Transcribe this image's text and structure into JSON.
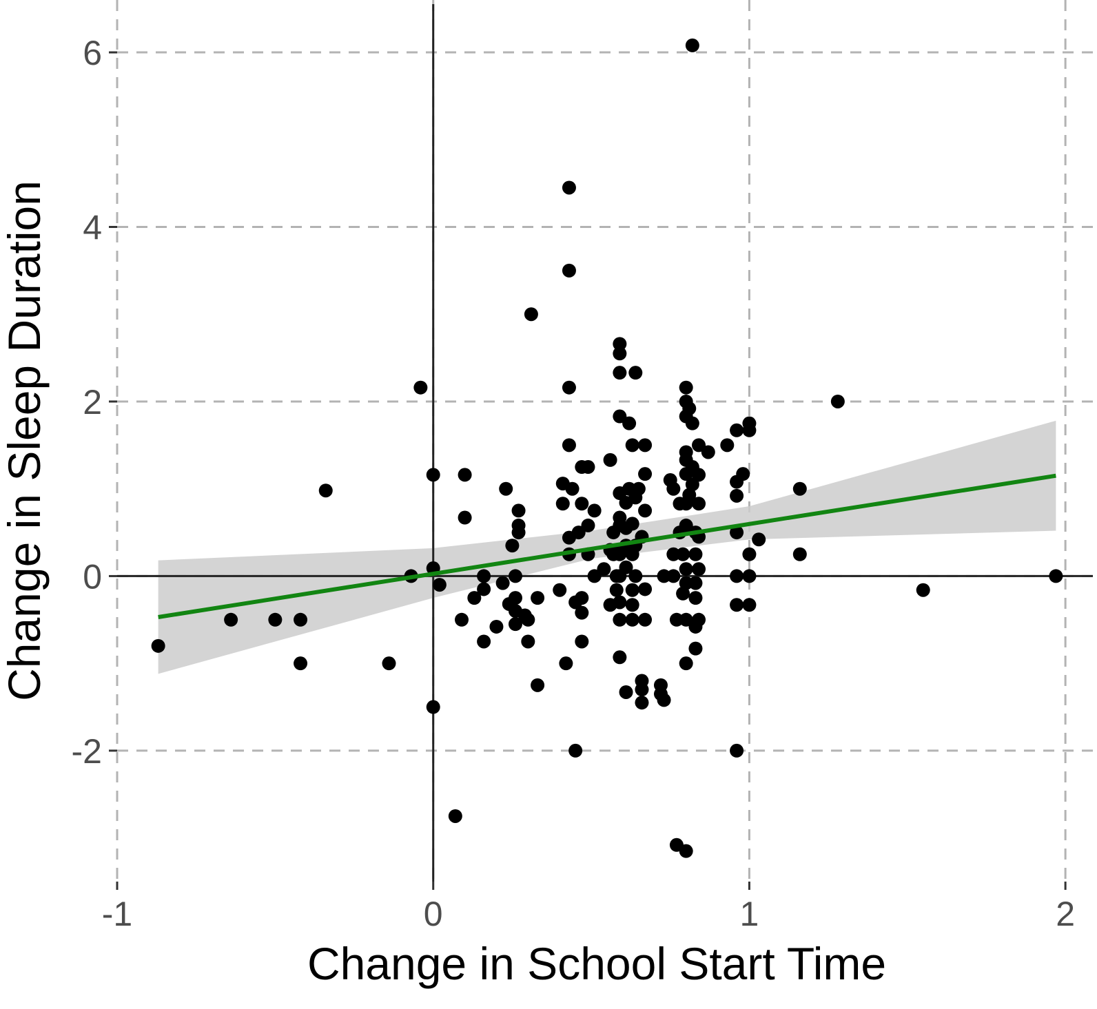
{
  "chart_data": {
    "type": "scatter",
    "xlabel": "Change in School Start Time",
    "ylabel": "Change in Sleep Duration",
    "xlim": [
      -1.0,
      2.1
    ],
    "ylim": [
      -3.5,
      6.6
    ],
    "xticks": [
      -1,
      0,
      1,
      2
    ],
    "yticks": [
      -2,
      0,
      2,
      4,
      6
    ],
    "xtick_labels": [
      "-1",
      "0",
      "1",
      "2"
    ],
    "ytick_labels": [
      "-2",
      "0",
      "2",
      "4",
      "6"
    ],
    "grid": true,
    "reference_lines": {
      "x": 0,
      "y": 0
    },
    "colors": {
      "points": "#000000",
      "fit_line": "#128512",
      "ribbon": "#cccccc",
      "grid": "#b3b3b3",
      "ref_line": "#222222"
    },
    "fit": {
      "x": [
        -0.87,
        1.97
      ],
      "y": [
        -0.47,
        1.15
      ]
    },
    "ribbon": {
      "x": [
        -0.87,
        0.0,
        0.5,
        1.0,
        1.97
      ],
      "lower": [
        -1.12,
        -0.25,
        0.2,
        0.42,
        0.52
      ],
      "upper": [
        0.18,
        0.32,
        0.52,
        0.8,
        1.78
      ]
    },
    "points": [
      [
        -0.87,
        -0.8
      ],
      [
        -0.64,
        -0.5
      ],
      [
        -0.5,
        -0.5
      ],
      [
        -0.42,
        -0.5
      ],
      [
        -0.42,
        -1.0
      ],
      [
        -0.34,
        0.98
      ],
      [
        -0.14,
        -1.0
      ],
      [
        -0.07,
        0.0
      ],
      [
        -0.04,
        2.16
      ],
      [
        0.0,
        1.16
      ],
      [
        0.0,
        0.09
      ],
      [
        0.0,
        -1.5
      ],
      [
        0.02,
        -0.1
      ],
      [
        0.07,
        -2.75
      ],
      [
        0.09,
        -0.5
      ],
      [
        0.1,
        0.67
      ],
      [
        0.1,
        1.16
      ],
      [
        0.13,
        -0.25
      ],
      [
        0.16,
        -0.75
      ],
      [
        0.16,
        0.0
      ],
      [
        0.16,
        -0.15
      ],
      [
        0.2,
        -0.58
      ],
      [
        0.22,
        -0.08
      ],
      [
        0.23,
        1.0
      ],
      [
        0.24,
        -0.32
      ],
      [
        0.25,
        0.35
      ],
      [
        0.26,
        0.0
      ],
      [
        0.26,
        -0.25
      ],
      [
        0.26,
        -0.4
      ],
      [
        0.26,
        -0.55
      ],
      [
        0.27,
        0.5
      ],
      [
        0.27,
        0.58
      ],
      [
        0.27,
        0.75
      ],
      [
        0.29,
        -0.45
      ],
      [
        0.3,
        -0.75
      ],
      [
        0.3,
        -0.5
      ],
      [
        0.31,
        3.0
      ],
      [
        0.33,
        -1.25
      ],
      [
        0.33,
        -0.25
      ],
      [
        0.4,
        -0.16
      ],
      [
        0.41,
        1.06
      ],
      [
        0.41,
        0.83
      ],
      [
        0.42,
        -1.0
      ],
      [
        0.43,
        0.25
      ],
      [
        0.43,
        0.44
      ],
      [
        0.43,
        1.5
      ],
      [
        0.43,
        3.5
      ],
      [
        0.43,
        4.45
      ],
      [
        0.43,
        2.16
      ],
      [
        0.44,
        1.0
      ],
      [
        0.45,
        -0.3
      ],
      [
        0.45,
        -2.0
      ],
      [
        0.46,
        0.5
      ],
      [
        0.47,
        0.83
      ],
      [
        0.47,
        1.25
      ],
      [
        0.47,
        -0.25
      ],
      [
        0.47,
        -0.42
      ],
      [
        0.47,
        -0.75
      ],
      [
        0.49,
        0.58
      ],
      [
        0.49,
        0.25
      ],
      [
        0.49,
        1.25
      ],
      [
        0.51,
        0.75
      ],
      [
        0.51,
        0.0
      ],
      [
        0.54,
        0.08
      ],
      [
        0.56,
        0.3
      ],
      [
        0.56,
        -0.33
      ],
      [
        0.56,
        1.33
      ],
      [
        0.57,
        0.25
      ],
      [
        0.57,
        0.5
      ],
      [
        0.58,
        0.0
      ],
      [
        0.58,
        -0.16
      ],
      [
        0.59,
        2.66
      ],
      [
        0.59,
        2.55
      ],
      [
        0.59,
        2.33
      ],
      [
        0.59,
        1.83
      ],
      [
        0.59,
        0.95
      ],
      [
        0.59,
        0.67
      ],
      [
        0.59,
        0.58
      ],
      [
        0.59,
        0.3
      ],
      [
        0.59,
        0.25
      ],
      [
        0.59,
        0.0
      ],
      [
        0.59,
        -0.3
      ],
      [
        0.59,
        -0.5
      ],
      [
        0.59,
        -0.93
      ],
      [
        0.61,
        -1.33
      ],
      [
        0.61,
        0.84
      ],
      [
        0.61,
        0.55
      ],
      [
        0.61,
        0.35
      ],
      [
        0.61,
        0.1
      ],
      [
        0.62,
        1.0
      ],
      [
        0.62,
        1.75
      ],
      [
        0.63,
        1.5
      ],
      [
        0.63,
        0.6
      ],
      [
        0.63,
        0.25
      ],
      [
        0.63,
        -0.16
      ],
      [
        0.63,
        -0.33
      ],
      [
        0.63,
        -0.5
      ],
      [
        0.64,
        2.33
      ],
      [
        0.64,
        0.9
      ],
      [
        0.64,
        0.35
      ],
      [
        0.64,
        0.0
      ],
      [
        0.65,
        1.0
      ],
      [
        0.66,
        0.45
      ],
      [
        0.66,
        -1.2
      ],
      [
        0.66,
        -1.3
      ],
      [
        0.66,
        -1.45
      ],
      [
        0.67,
        1.5
      ],
      [
        0.67,
        1.17
      ],
      [
        0.67,
        0.75
      ],
      [
        0.67,
        -0.15
      ],
      [
        0.67,
        -0.5
      ],
      [
        0.72,
        -1.25
      ],
      [
        0.72,
        -1.35
      ],
      [
        0.73,
        0.0
      ],
      [
        0.73,
        -1.42
      ],
      [
        0.75,
        1.1
      ],
      [
        0.76,
        0.25
      ],
      [
        0.76,
        0.0
      ],
      [
        0.76,
        1.0
      ],
      [
        0.77,
        -0.5
      ],
      [
        0.77,
        -3.08
      ],
      [
        0.78,
        0.83
      ],
      [
        0.78,
        0.5
      ],
      [
        0.79,
        0.25
      ],
      [
        0.79,
        -0.2
      ],
      [
        0.8,
        2.16
      ],
      [
        0.8,
        2.0
      ],
      [
        0.8,
        1.83
      ],
      [
        0.8,
        1.42
      ],
      [
        0.8,
        1.33
      ],
      [
        0.8,
        1.17
      ],
      [
        0.8,
        0.83
      ],
      [
        0.8,
        0.58
      ],
      [
        0.8,
        0.08
      ],
      [
        0.8,
        -0.08
      ],
      [
        0.8,
        -0.5
      ],
      [
        0.8,
        -1.0
      ],
      [
        0.8,
        -3.15
      ],
      [
        0.81,
        1.92
      ],
      [
        0.81,
        0.93
      ],
      [
        0.82,
        1.25
      ],
      [
        0.82,
        1.75
      ],
      [
        0.82,
        1.05
      ],
      [
        0.83,
        0.5
      ],
      [
        0.83,
        0.25
      ],
      [
        0.83,
        -0.25
      ],
      [
        0.83,
        -0.58
      ],
      [
        0.83,
        -0.83
      ],
      [
        0.83,
        -0.08
      ],
      [
        0.84,
        1.5
      ],
      [
        0.84,
        1.16
      ],
      [
        0.84,
        0.83
      ],
      [
        0.84,
        0.45
      ],
      [
        0.84,
        0.08
      ],
      [
        0.84,
        -0.5
      ],
      [
        0.87,
        1.42
      ],
      [
        0.93,
        1.5
      ],
      [
        0.96,
        1.67
      ],
      [
        0.96,
        1.08
      ],
      [
        0.96,
        0.92
      ],
      [
        0.96,
        0.5
      ],
      [
        0.96,
        0.0
      ],
      [
        0.96,
        -0.33
      ],
      [
        0.96,
        -2.0
      ],
      [
        0.98,
        1.17
      ],
      [
        1.0,
        1.75
      ],
      [
        1.0,
        1.67
      ],
      [
        1.0,
        0.25
      ],
      [
        1.0,
        0.0
      ],
      [
        1.0,
        -0.33
      ],
      [
        1.03,
        0.42
      ],
      [
        1.16,
        1.0
      ],
      [
        1.16,
        0.25
      ],
      [
        1.28,
        2.0
      ],
      [
        1.55,
        -0.16
      ],
      [
        1.97,
        0.0
      ],
      [
        0.82,
        6.08
      ]
    ]
  }
}
